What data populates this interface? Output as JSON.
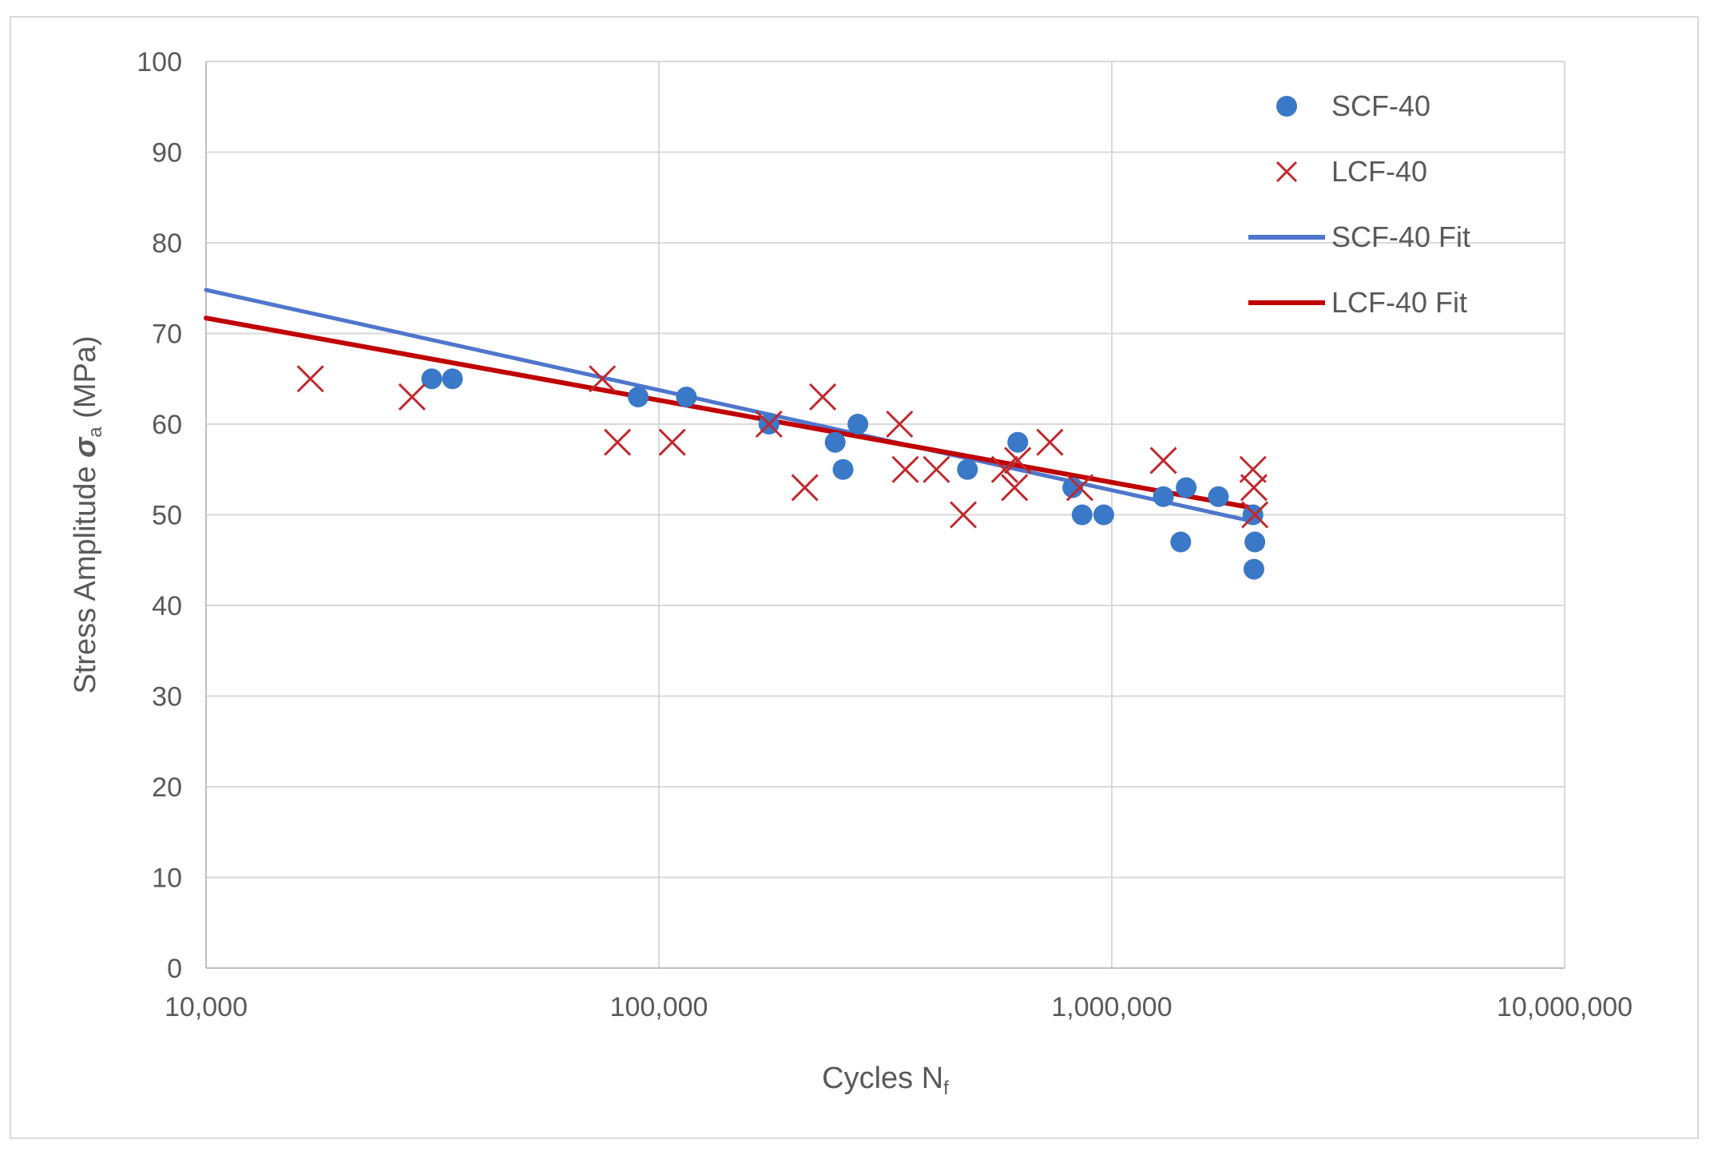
{
  "chart_data": {
    "type": "scatter",
    "title": "",
    "xlabel": "Cycles N",
    "xlabel_sub": "f",
    "ylabel": "Stress Amplitude ",
    "ylabel_sigma": "σ",
    "ylabel_sub": "a",
    "ylabel_unit": " (MPa)",
    "xscale": "log",
    "xlim": [
      10000,
      10000000
    ],
    "ylim": [
      0,
      100
    ],
    "x_ticks": [
      10000,
      100000,
      1000000,
      10000000
    ],
    "x_tick_labels": [
      "10,000",
      "100,000",
      "1,000,000",
      "10,000,000"
    ],
    "y_ticks": [
      0,
      10,
      20,
      30,
      40,
      50,
      60,
      70,
      80,
      90,
      100
    ],
    "y_tick_labels": [
      "0",
      "10",
      "20",
      "30",
      "40",
      "50",
      "60",
      "70",
      "80",
      "90",
      "100"
    ],
    "grid": true,
    "legend_position": "top-right",
    "colors": {
      "scf": "#3a78c8",
      "lcf": "#c0282d",
      "scf_fit": "#4f76cc",
      "lcf_fit": "#c00000",
      "grid": "#d9d9d9",
      "axis": "#bfbfbf"
    },
    "series": [
      {
        "name": "SCF-40",
        "kind": "marker-circle",
        "points": [
          [
            31500,
            65
          ],
          [
            35000,
            65
          ],
          [
            90000,
            63
          ],
          [
            115000,
            63
          ],
          [
            175000,
            60
          ],
          [
            245000,
            58
          ],
          [
            255000,
            55
          ],
          [
            275000,
            60
          ],
          [
            480000,
            55
          ],
          [
            620000,
            58
          ],
          [
            820000,
            53
          ],
          [
            860000,
            50
          ],
          [
            960000,
            50
          ],
          [
            1300000,
            52
          ],
          [
            1420000,
            47
          ],
          [
            1460000,
            53
          ],
          [
            1720000,
            52
          ],
          [
            2050000,
            50
          ],
          [
            2070000,
            47
          ],
          [
            2060000,
            44
          ]
        ]
      },
      {
        "name": "LCF-40",
        "kind": "marker-x",
        "points": [
          [
            17000,
            65
          ],
          [
            28500,
            63
          ],
          [
            75000,
            65
          ],
          [
            81000,
            58
          ],
          [
            107000,
            58
          ],
          [
            175000,
            60
          ],
          [
            210000,
            53
          ],
          [
            230000,
            63
          ],
          [
            340000,
            60
          ],
          [
            350000,
            55
          ],
          [
            410000,
            55
          ],
          [
            470000,
            50
          ],
          [
            580000,
            55
          ],
          [
            610000,
            53
          ],
          [
            620000,
            56
          ],
          [
            730000,
            58
          ],
          [
            850000,
            53
          ],
          [
            1300000,
            56
          ],
          [
            2050000,
            55
          ],
          [
            2060000,
            53
          ],
          [
            2070000,
            50
          ]
        ]
      },
      {
        "name": "SCF-40 Fit",
        "kind": "line",
        "points": [
          [
            10000,
            74.8
          ],
          [
            2080000,
            49.2
          ]
        ]
      },
      {
        "name": "LCF-40 Fit",
        "kind": "line",
        "points": [
          [
            10000,
            71.7
          ],
          [
            2080000,
            50.7
          ]
        ]
      }
    ]
  }
}
